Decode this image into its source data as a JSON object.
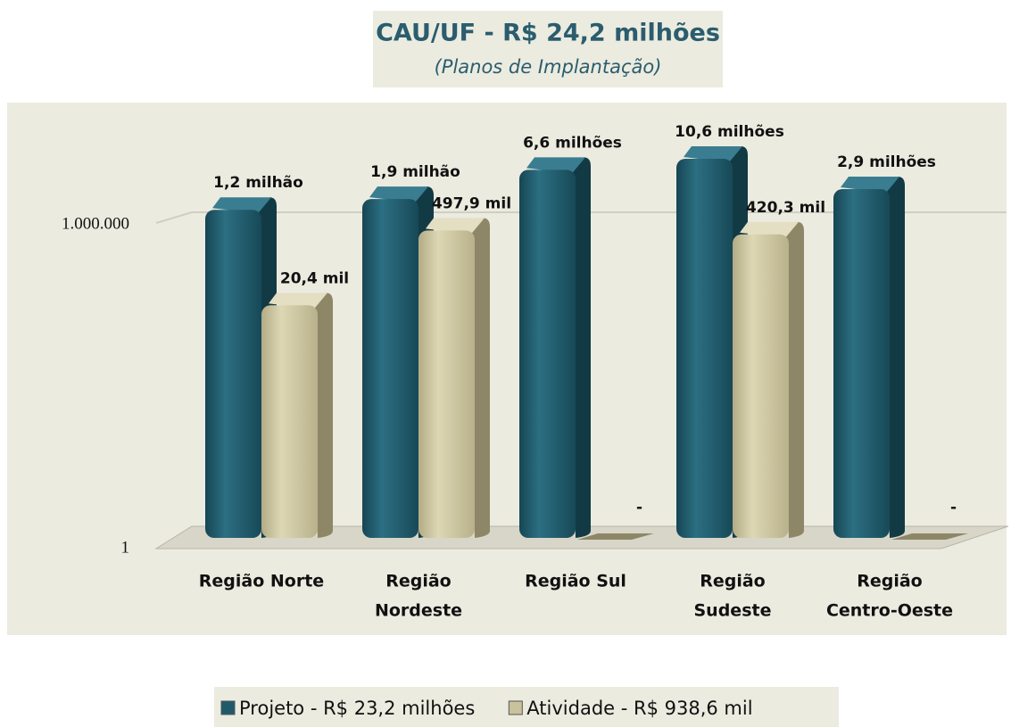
{
  "chart_data": {
    "type": "bar",
    "title": "CAU/UF  - R$ 24,2 milhões",
    "subtitle": "(Planos de Implantação)",
    "categories": [
      [
        "Região Norte"
      ],
      [
        "Região",
        "Nordeste"
      ],
      [
        "Região Sul"
      ],
      [
        "Região",
        "Sudeste"
      ],
      [
        "Região",
        "Centro-Oeste"
      ]
    ],
    "series": [
      {
        "name": "Projeto - R$ 23,2 milhões",
        "color": "#1f5a6b",
        "values": [
          1200000,
          1900000,
          6600000,
          10600000,
          2900000
        ],
        "value_labels": [
          "1,2 milhão",
          "1,9 milhão",
          "6,6 milhões",
          "10,6 milhões",
          "2,9 milhões"
        ]
      },
      {
        "name": "Atividade - R$ 938,6 mil",
        "color": "#c9c29a",
        "values": [
          20400,
          497900,
          0,
          420300,
          0
        ],
        "value_labels": [
          "20,4 mil",
          "497,9 mil",
          "-",
          "420,3 mil",
          "-"
        ]
      }
    ],
    "log_scale": true,
    "ylim": [
      1,
      100000000
    ],
    "yticks": [
      1,
      {
        "value": 1000000,
        "label": "1.000.000"
      }
    ],
    "grid": true,
    "legend": "bottom"
  }
}
